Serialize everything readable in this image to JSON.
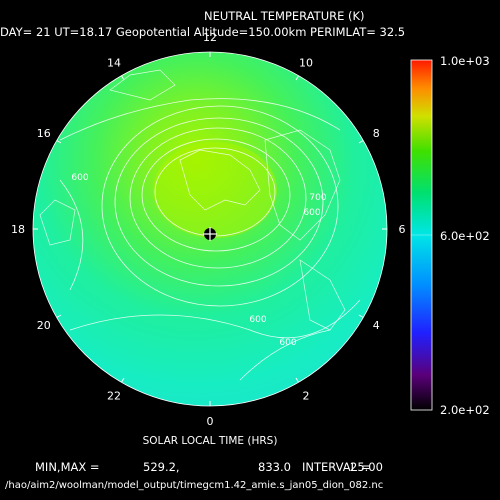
{
  "title": "NEUTRAL TEMPERATURE (K)",
  "subtitle": "DAY= 21 UT=18.17 Geopotential Altitude=150.00km PERIMLAT= 32.5",
  "xlabel": "SOLAR LOCAL TIME (HRS)",
  "stats": {
    "label": "MIN,MAX =",
    "min": "529.2,",
    "max": "833.0",
    "interval_label": "INTERVAL =",
    "interval": "25.00"
  },
  "filepath": "/hao/aim2/woolman/model_output/timegcm1.42_amie.s_jan05_dion_082.nc",
  "colorbar": {
    "top": "1.0e+03",
    "mid": "6.0e+02",
    "bottom": "2.0e+02",
    "range": [
      200,
      1000
    ]
  },
  "colors": {
    "background": "#000000",
    "text": "#ffffff",
    "contour": "#ffffff"
  },
  "chart_data": {
    "type": "heatmap",
    "projection": "polar",
    "title": "NEUTRAL TEMPERATURE (K)",
    "xlabel": "SOLAR LOCAL TIME (HRS)",
    "units": "K",
    "min": 529.2,
    "max": 833.0,
    "contour_interval": 25.0,
    "colorbar_range": [
      200,
      1000
    ],
    "perimeter_latitude": 32.5,
    "local_time_ticks": [
      "12",
      "10",
      "8",
      "6",
      "4",
      "2",
      "0",
      "22",
      "20",
      "18",
      "16",
      "14"
    ],
    "contour_labels": [
      "600",
      "700",
      "600",
      "600",
      "600"
    ]
  }
}
